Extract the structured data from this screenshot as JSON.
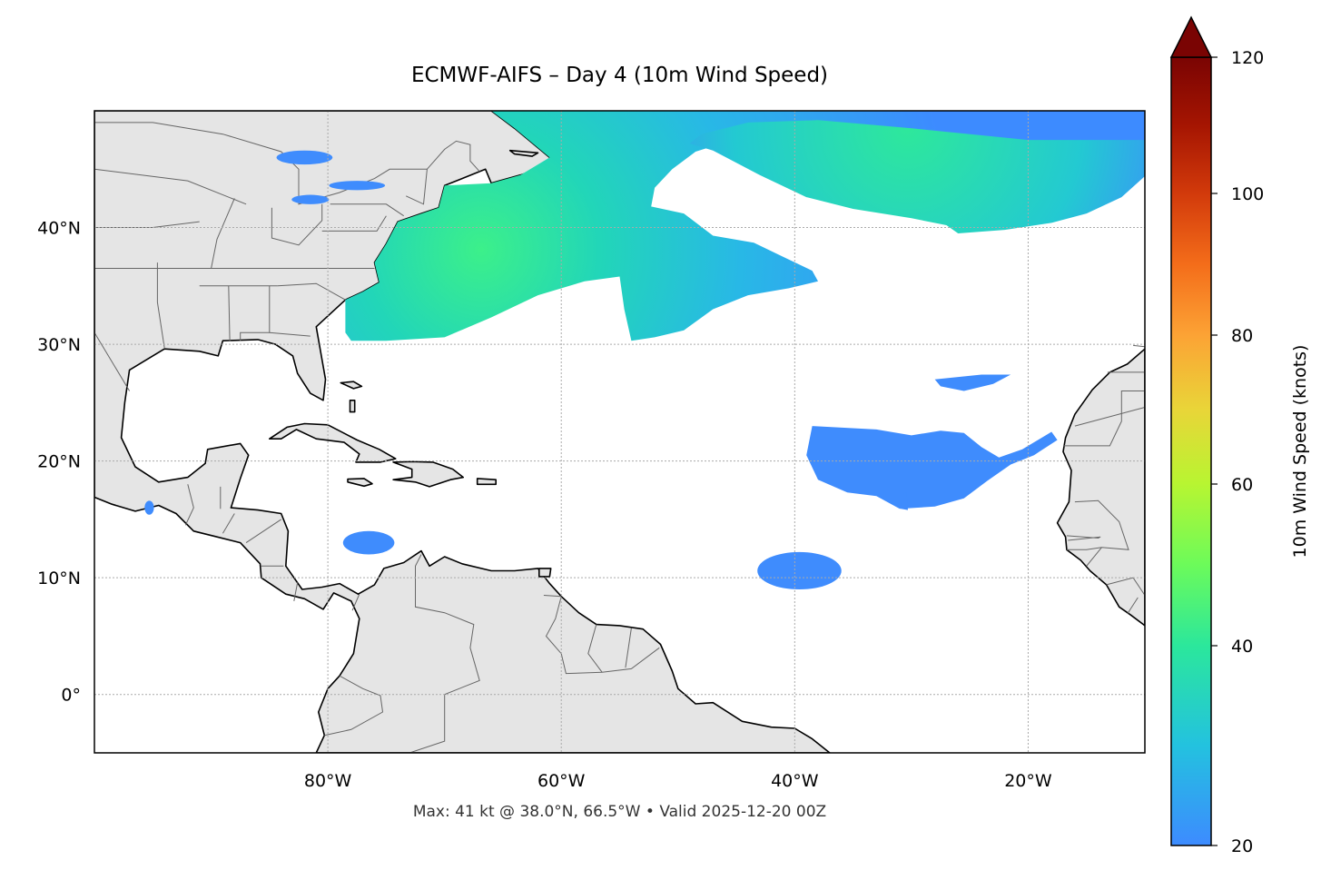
{
  "chart_data": {
    "type": "map",
    "title": "ECMWF-AIFS – Day 4 (10m Wind Speed)",
    "annotation": "Max: 41 kt @ 38.0°N, 66.5°W • Valid 2025-12-20 00Z",
    "extent": {
      "lon": [
        -100,
        -10
      ],
      "lat": [
        -5,
        50
      ]
    },
    "x_ticks": [
      {
        "value": -80,
        "label": "80°W"
      },
      {
        "value": -60,
        "label": "60°W"
      },
      {
        "value": -40,
        "label": "40°W"
      },
      {
        "value": -20,
        "label": "20°W"
      }
    ],
    "y_ticks": [
      {
        "value": 0,
        "label": "0°"
      },
      {
        "value": 10,
        "label": "10°N"
      },
      {
        "value": 20,
        "label": "20°N"
      },
      {
        "value": 30,
        "label": "30°N"
      },
      {
        "value": 40,
        "label": "40°N"
      }
    ],
    "grid": true,
    "colorbar": {
      "label": "10m Wind Speed (knots)",
      "range": [
        20,
        120
      ],
      "extend": "max",
      "ticks": [
        "20",
        "40",
        "60",
        "80",
        "100",
        "120"
      ],
      "colormap": "turbo"
    },
    "max_point": {
      "value_kt": 41,
      "lat": 38.0,
      "lon": -66.5
    },
    "colors": {
      "land": "#e5e5e5",
      "ocean": "#ffffff",
      "coast": "#000000",
      "borders": "#666666",
      "low": "#3d8bff",
      "mid": "#2be79c",
      "high": "#7a0403"
    }
  }
}
